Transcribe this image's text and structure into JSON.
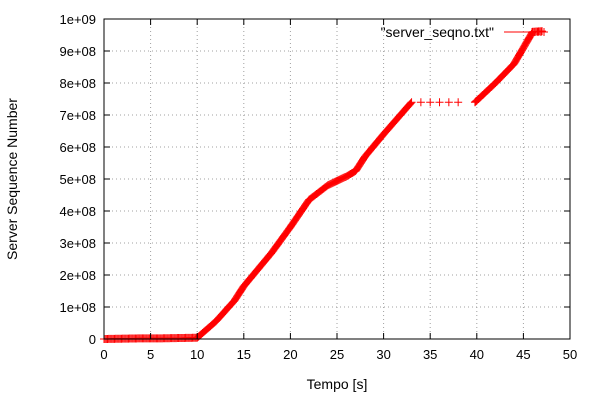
{
  "chart_data": {
    "type": "scatter",
    "title": "",
    "xlabel": "Tempo [s]",
    "ylabel": "Server Sequence Number",
    "xlim": [
      0,
      50
    ],
    "ylim": [
      0,
      1000000000
    ],
    "x_ticks": [
      0,
      5,
      10,
      15,
      20,
      25,
      30,
      35,
      40,
      45,
      50
    ],
    "x_tick_labels": [
      "0",
      "5",
      "10",
      "15",
      "20",
      "25",
      "30",
      "35",
      "40",
      "45",
      "50"
    ],
    "y_ticks": [
      0,
      100000000,
      200000000,
      300000000,
      400000000,
      500000000,
      600000000,
      700000000,
      800000000,
      900000000,
      1000000000
    ],
    "y_tick_labels": [
      "0",
      "1e+08",
      "2e+08",
      "3e+08",
      "4e+08",
      "5e+08",
      "6e+08",
      "7e+08",
      "8e+08",
      "9e+08",
      "1e+09"
    ],
    "grid": true,
    "legend_position": "top-right",
    "marker": "plus",
    "color": "#ff0000",
    "series": [
      {
        "name": "\"server_seqno.txt\"",
        "points": [
          [
            0,
            0
          ],
          [
            2,
            1000000
          ],
          [
            4,
            2000000
          ],
          [
            6,
            2000000
          ],
          [
            8,
            3000000
          ],
          [
            10,
            4000000
          ],
          [
            12,
            55000000
          ],
          [
            14,
            120000000
          ],
          [
            15,
            165000000
          ],
          [
            16,
            200000000
          ],
          [
            18,
            270000000
          ],
          [
            20,
            350000000
          ],
          [
            22,
            435000000
          ],
          [
            24,
            480000000
          ],
          [
            26,
            508000000
          ],
          [
            27,
            525000000
          ],
          [
            28,
            570000000
          ],
          [
            30,
            640000000
          ],
          [
            33,
            740000000
          ],
          [
            34,
            740000000
          ],
          [
            35,
            740000000
          ],
          [
            36,
            740000000
          ],
          [
            37,
            740000000
          ],
          [
            38,
            740000000
          ],
          [
            39.8,
            740000000
          ],
          [
            40,
            745000000
          ],
          [
            42,
            800000000
          ],
          [
            44,
            860000000
          ],
          [
            46,
            960000000
          ],
          [
            47,
            962000000
          ]
        ]
      }
    ]
  }
}
